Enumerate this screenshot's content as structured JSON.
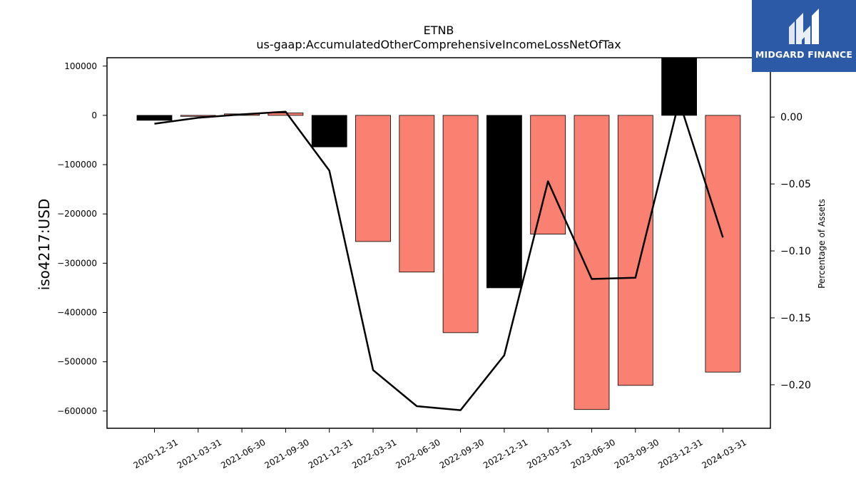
{
  "chart_data": {
    "type": "bar",
    "title": "ETNB",
    "subtitle": "us-gaap:AccumulatedOtherComprehensiveIncomeLossNetOfTax",
    "ylabel": "iso4217:USD",
    "ylabel_right": "Percentage of Assets",
    "categories": [
      "2020-12-31",
      "2021-03-31",
      "2021-06-30",
      "2021-09-30",
      "2021-12-31",
      "2022-03-31",
      "2022-06-30",
      "2022-09-30",
      "2022-12-31",
      "2023-03-31",
      "2023-06-30",
      "2023-09-30",
      "2023-12-31",
      "2024-03-31"
    ],
    "series": [
      {
        "type": "bar",
        "values": [
          -10000,
          -2000,
          3000,
          5000,
          -64000,
          -256000,
          -318000,
          -441000,
          -350000,
          -241000,
          -597000,
          -548000,
          117000,
          -521000
        ],
        "colors": [
          "#000000",
          "#fa8072",
          "#fa8072",
          "#fa8072",
          "#000000",
          "#fa8072",
          "#fa8072",
          "#fa8072",
          "#000000",
          "#fa8072",
          "#fa8072",
          "#fa8072",
          "#000000",
          "#fa8072"
        ]
      },
      {
        "type": "line",
        "axis": "right",
        "values": [
          -0.005,
          -0.0005,
          0.002,
          0.004,
          -0.04,
          -0.189,
          -0.216,
          -0.219,
          -0.178,
          -0.048,
          -0.121,
          -0.12,
          0.012,
          -0.09
        ],
        "color": "#000000"
      }
    ],
    "ylim": [
      -635000,
      117000
    ],
    "yticks": [
      100000,
      0,
      -100000,
      -200000,
      -300000,
      -400000,
      -500000,
      -600000
    ],
    "yticklabels": [
      "100000",
      "0",
      "−100000",
      "−200000",
      "−300000",
      "−400000",
      "−500000",
      "−600000"
    ],
    "ylim_right": [
      -0.2325,
      0.0443
    ],
    "yticks_right": [
      0.0,
      -0.05,
      -0.1,
      -0.15,
      -0.2
    ],
    "yticklabels_right": [
      "0.00",
      "−0.05",
      "−0.10",
      "−0.15",
      "−0.20"
    ],
    "grid": false
  },
  "logo": {
    "brand": "MIDGARD FINANCE",
    "icon": "midgard-logo-icon",
    "background": "#2d5aa6"
  }
}
